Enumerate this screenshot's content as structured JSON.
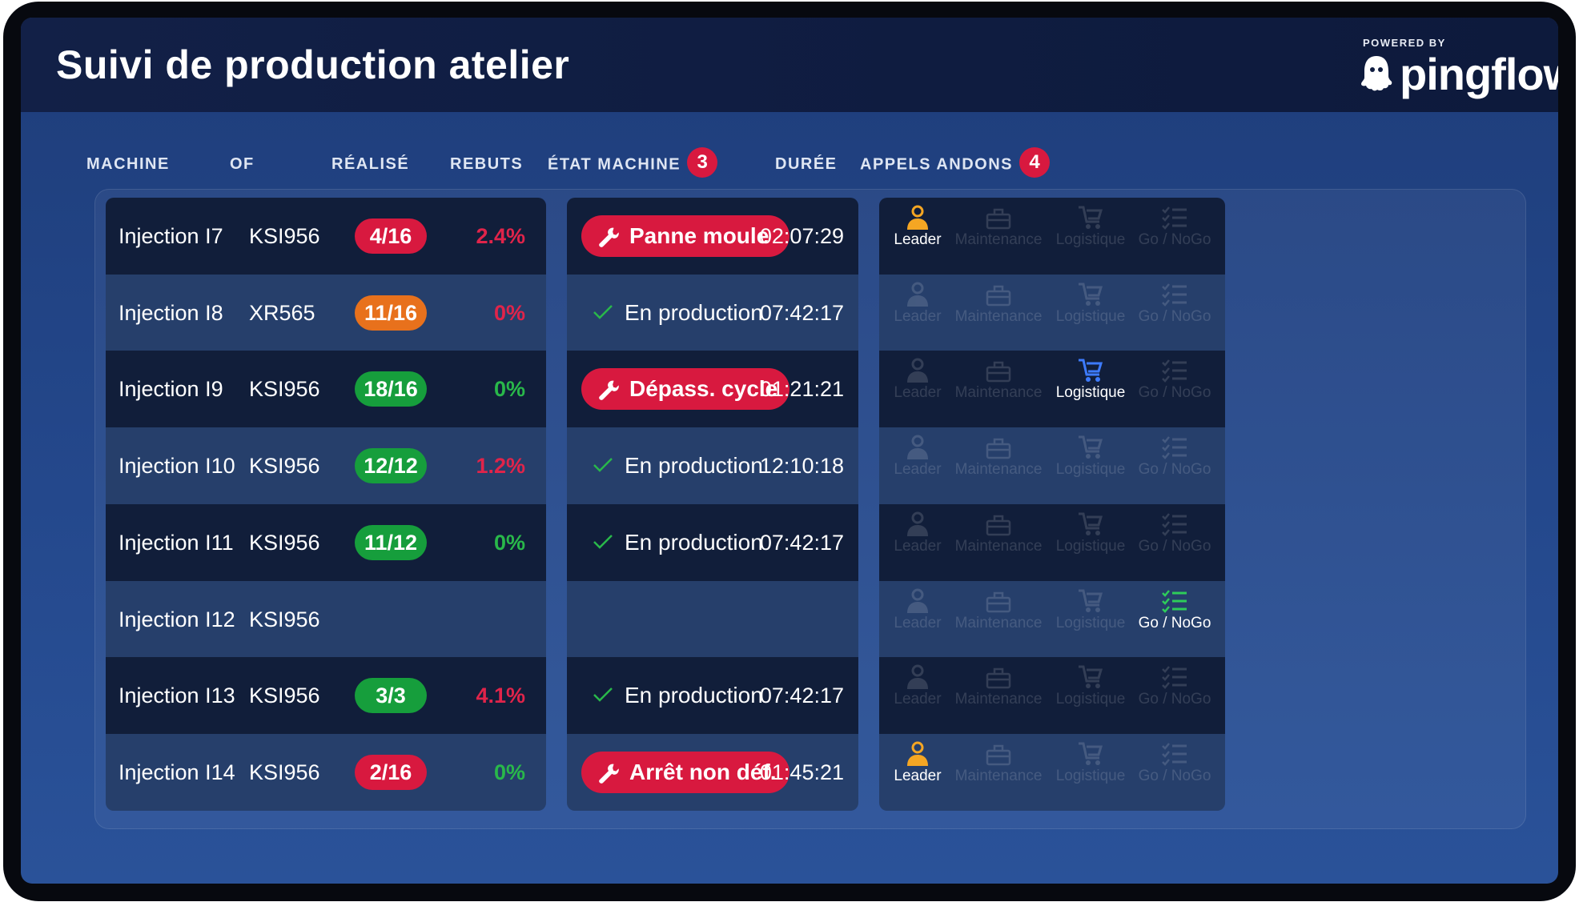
{
  "app": {
    "title": "Suivi de production atelier",
    "powered_by": "POWERED BY",
    "brand": "pingflow"
  },
  "columns": {
    "machine": "MACHINE",
    "of": "OF",
    "realise": "RÉALISÉ",
    "rebuts": "REBUTS",
    "etat_machine": "ÉTAT MACHINE",
    "etat_count": "3",
    "duree": "DURÉE",
    "appels_andons": "APPELS ANDONS",
    "appels_count": "4"
  },
  "andon_labels": [
    "Leader",
    "Maintenance",
    "Logistique",
    "Go / NoGo"
  ],
  "andon_icons": [
    "person-icon",
    "toolbox-icon",
    "cart-icon",
    "checklist-icon"
  ],
  "colors": {
    "red": "#d8193f",
    "orange": "#e8711c",
    "green": "#169e3c",
    "pct_red": "#e0244a",
    "pct_green": "#29b84a",
    "leader": "#f5a623",
    "logistique": "#3d7bff",
    "gonogo": "#2ecc5a"
  },
  "rows": [
    {
      "machine": "Injection I7",
      "of": "KSI956",
      "realise": "4/16",
      "realise_status": "red",
      "rebuts": "2.4%",
      "rebuts_status": "red",
      "state": "Panne moule",
      "state_type": "alarm",
      "duree": "02:07:29",
      "andons": [
        true,
        false,
        false,
        false
      ]
    },
    {
      "machine": "Injection I8",
      "of": "XR565",
      "realise": "11/16",
      "realise_status": "orange",
      "rebuts": "0%",
      "rebuts_status": "red",
      "state": "En production",
      "state_type": "ok",
      "duree": "07:42:17",
      "andons": [
        false,
        false,
        false,
        false
      ]
    },
    {
      "machine": "Injection I9",
      "of": "KSI956",
      "realise": "18/16",
      "realise_status": "green",
      "rebuts": "0%",
      "rebuts_status": "green",
      "state": "Dépass. cycle",
      "state_type": "alarm",
      "duree": "01:21:21",
      "andons": [
        false,
        false,
        true,
        false
      ]
    },
    {
      "machine": "Injection I10",
      "of": "KSI956",
      "realise": "12/12",
      "realise_status": "green",
      "rebuts": "1.2%",
      "rebuts_status": "red",
      "state": "En production",
      "state_type": "ok",
      "duree": "12:10:18",
      "andons": [
        false,
        false,
        false,
        false
      ]
    },
    {
      "machine": "Injection I11",
      "of": "KSI956",
      "realise": "11/12",
      "realise_status": "green",
      "rebuts": "0%",
      "rebuts_status": "green",
      "state": "En production",
      "state_type": "ok",
      "duree": "07:42:17",
      "andons": [
        false,
        false,
        false,
        false
      ]
    },
    {
      "machine": "Injection I12",
      "of": "KSI956",
      "realise": "",
      "realise_status": "",
      "rebuts": "",
      "rebuts_status": "",
      "state": "",
      "state_type": "none",
      "duree": "",
      "andons": [
        false,
        false,
        false,
        true
      ]
    },
    {
      "machine": "Injection I13",
      "of": "KSI956",
      "realise": "3/3",
      "realise_status": "green",
      "rebuts": "4.1%",
      "rebuts_status": "red",
      "state": "En production",
      "state_type": "ok",
      "duree": "07:42:17",
      "andons": [
        false,
        false,
        false,
        false
      ]
    },
    {
      "machine": "Injection I14",
      "of": "KSI956",
      "realise": "2/16",
      "realise_status": "red",
      "rebuts": "0%",
      "rebuts_status": "green",
      "state": "Arrêt non déf.",
      "state_type": "alarm",
      "duree": "01:45:21",
      "andons": [
        true,
        false,
        false,
        false
      ]
    }
  ]
}
